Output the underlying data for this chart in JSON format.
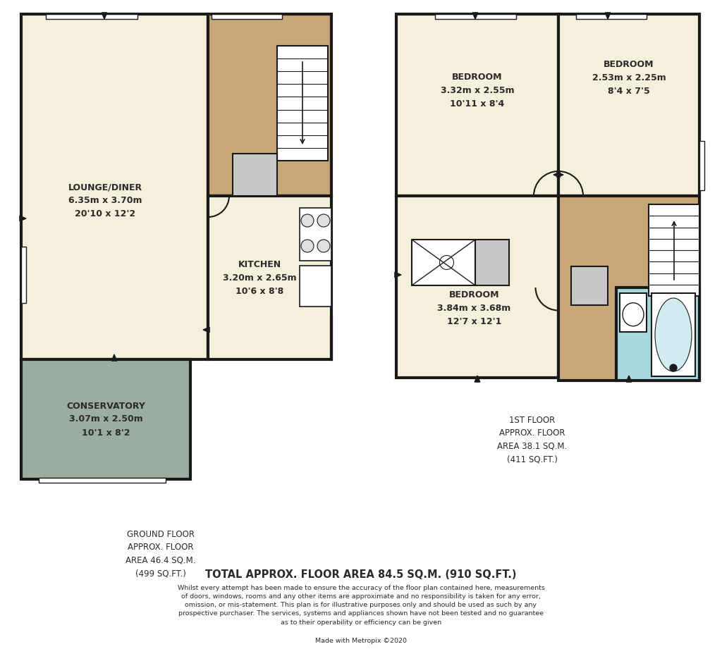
{
  "bg_color": "#ffffff",
  "wall_color": "#1a1a1a",
  "lounge_color": "#f5f0dc",
  "hallway_color": "#c8a878",
  "conservatory_color": "#9aada0",
  "bedroom_color": "#f5f0dc",
  "bathroom_color": "#a8d8dc",
  "landing_color": "#c8a878",
  "fixture_color": "#c8c8c8",
  "white": "#ffffff",
  "wall_lw": 3.0,
  "ground_floor_text": "GROUND FLOOR\nAPPROX. FLOOR\nAREA 46.4 SQ.M.\n(499 SQ.FT.)",
  "first_floor_text": "1ST FLOOR\nAPPROX. FLOOR\nAREA 38.1 SQ.M.\n(411 SQ.FT.)",
  "total_text": "TOTAL APPROX. FLOOR AREA 84.5 SQ.M. (910 SQ.FT.)",
  "disclaimer": "Whilst every attempt has been made to ensure the accuracy of the floor plan contained here, measurements\nof doors, windows, rooms and any other items are approximate and no responsibility is taken for any error,\nomission, or mis-statement. This plan is for illustrative purposes only and should be used as such by any\nprospective purchaser. The services, systems and appliances shown have not been tested and no guarantee\nas to their operability or efficiency can be given",
  "made_with": "Made with Metropix ©2020"
}
